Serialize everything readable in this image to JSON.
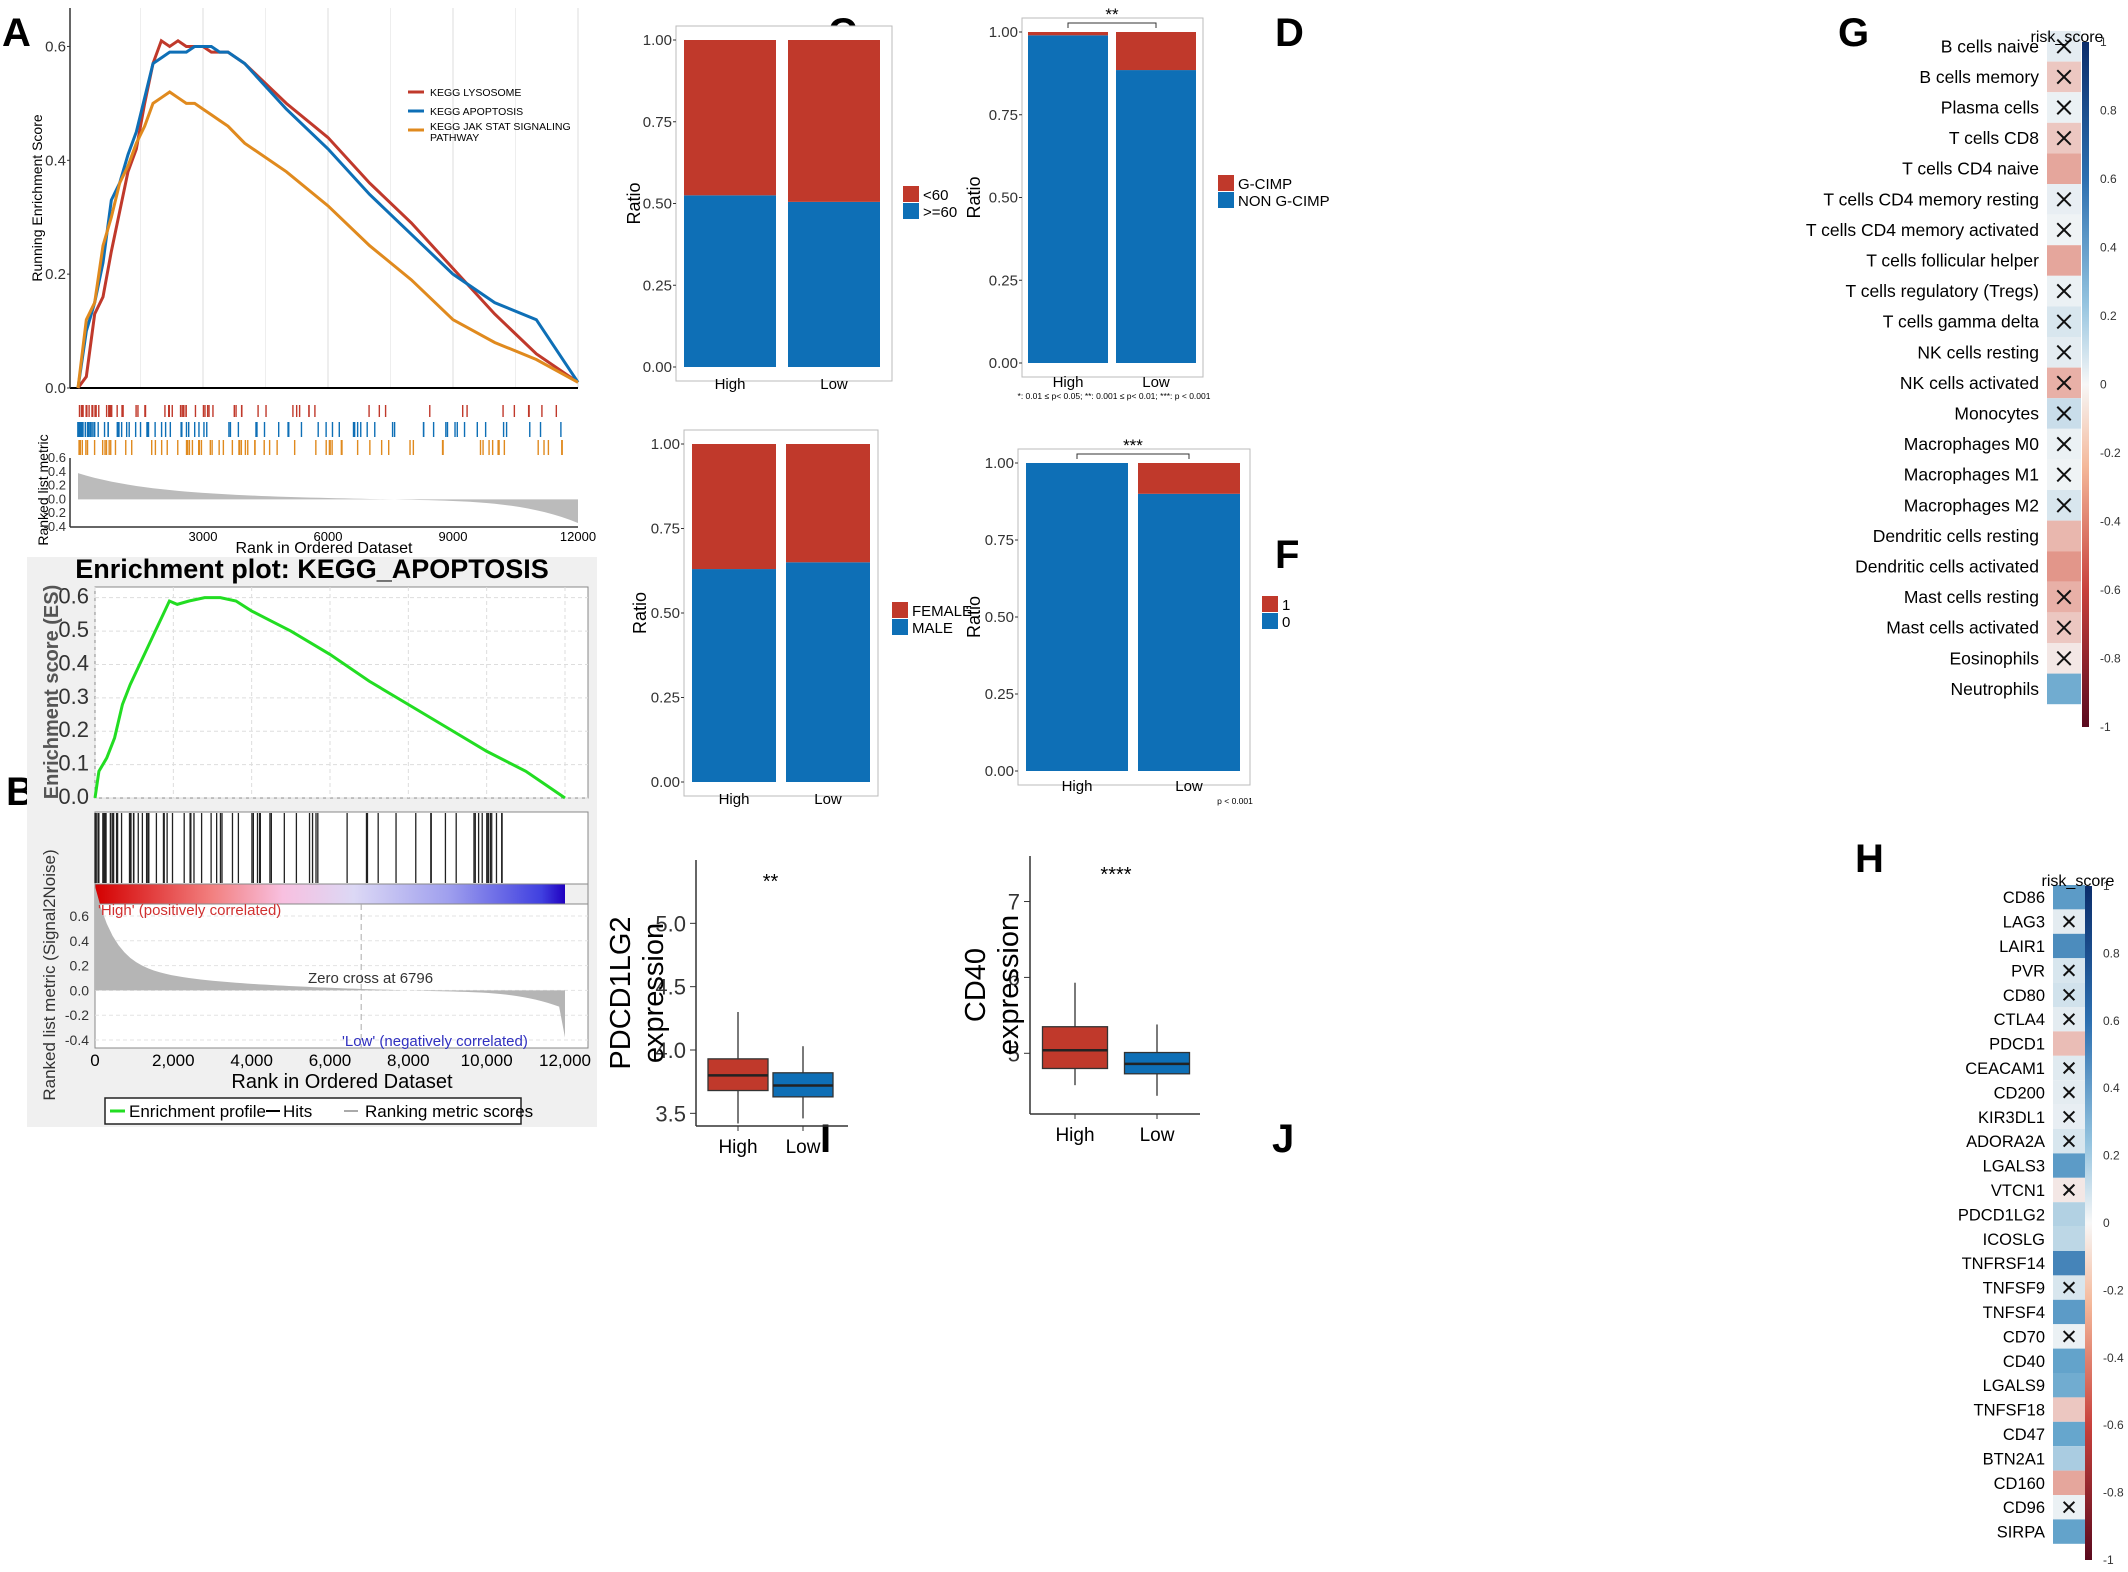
{
  "colors": {
    "red": "#c0392b",
    "blue": "#0e6fb6",
    "orange": "#e08a1e",
    "green": "#22dd22",
    "grey": "#aaaaaa"
  },
  "panels": {
    "A": "A",
    "B": "B",
    "C": "C",
    "D": "D",
    "E": "E",
    "F": "F",
    "G": "G",
    "H": "H",
    "I": "I",
    "J": "J"
  },
  "chart_data": [
    {
      "panel": "A",
      "type": "line",
      "ylabel": "Running Enrichment Score",
      "xlabel": "Rank in Ordered Dataset",
      "lower_ylabel": "Ranked list metric",
      "xlim": [
        0,
        12000
      ],
      "ylim": [
        0,
        0.65
      ],
      "xticks": [
        "3000",
        "6000",
        "9000",
        "12000"
      ],
      "yticks": [
        "0.0",
        "0.2",
        "0.4",
        "0.6"
      ],
      "lower_yticks": [
        "0.6",
        "0.4",
        "0.2",
        "0.0",
        "-0.2",
        "-0.4"
      ],
      "series": [
        {
          "name": "KEGG LYSOSOME",
          "color": "red",
          "x": [
            0,
            200,
            400,
            600,
            800,
            1000,
            1200,
            1400,
            1600,
            1800,
            2000,
            2200,
            2400,
            2600,
            2800,
            3000,
            3200,
            3400,
            3600,
            4000,
            5000,
            6000,
            7000,
            8000,
            9000,
            10000,
            11000,
            12000
          ],
          "y": [
            0,
            0.02,
            0.13,
            0.16,
            0.24,
            0.31,
            0.38,
            0.42,
            0.5,
            0.57,
            0.61,
            0.6,
            0.61,
            0.6,
            0.6,
            0.6,
            0.59,
            0.59,
            0.59,
            0.57,
            0.5,
            0.44,
            0.36,
            0.29,
            0.21,
            0.13,
            0.06,
            0.01
          ]
        },
        {
          "name": "KEGG APOPTOSIS",
          "color": "blue",
          "x": [
            0,
            200,
            400,
            600,
            800,
            1000,
            1200,
            1400,
            1600,
            1800,
            2000,
            2200,
            2400,
            2600,
            2800,
            3000,
            3200,
            3400,
            3600,
            4000,
            5000,
            6000,
            7000,
            8000,
            9000,
            10000,
            11000,
            12000
          ],
          "y": [
            0,
            0.1,
            0.15,
            0.22,
            0.33,
            0.36,
            0.41,
            0.45,
            0.51,
            0.57,
            0.58,
            0.59,
            0.59,
            0.59,
            0.6,
            0.6,
            0.6,
            0.59,
            0.59,
            0.57,
            0.49,
            0.42,
            0.34,
            0.27,
            0.2,
            0.15,
            0.12,
            0.01
          ]
        },
        {
          "name": "KEGG JAK STAT SIGNALING PATHWAY",
          "color": "orange",
          "x": [
            0,
            200,
            400,
            600,
            800,
            1000,
            1200,
            1400,
            1600,
            1800,
            2000,
            2200,
            2400,
            2600,
            2800,
            3000,
            3200,
            3400,
            3600,
            4000,
            5000,
            6000,
            7000,
            8000,
            9000,
            10000,
            11000,
            12000
          ],
          "y": [
            0,
            0.12,
            0.15,
            0.25,
            0.3,
            0.36,
            0.39,
            0.43,
            0.46,
            0.5,
            0.51,
            0.52,
            0.51,
            0.5,
            0.5,
            0.49,
            0.48,
            0.47,
            0.46,
            0.43,
            0.38,
            0.32,
            0.25,
            0.19,
            0.12,
            0.08,
            0.05,
            0.01
          ]
        }
      ]
    },
    {
      "panel": "B",
      "type": "line",
      "title": "Enrichment plot: KEGG_APOPTOSIS",
      "ylabel": "Enrichment score (ES)",
      "lower_ylabel": "Ranked list metric (Signal2Noise)",
      "xlabel": "Rank in Ordered Dataset",
      "xlim": [
        0,
        12000
      ],
      "ylim": [
        0,
        0.62
      ],
      "xticks": [
        "0",
        "2,000",
        "4,000",
        "6,000",
        "8,000",
        "10,000",
        "12,000"
      ],
      "yticks": [
        "0.0",
        "0.1",
        "0.2",
        "0.3",
        "0.4",
        "0.5",
        "0.6"
      ],
      "lower_yticks": [
        "0.6",
        "0.4",
        "0.2",
        "0.0",
        "-0.2",
        "-0.4"
      ],
      "series": [
        {
          "name": "Enrichment profile",
          "x": [
            0,
            100,
            300,
            500,
            700,
            900,
            1100,
            1300,
            1500,
            1700,
            1900,
            2100,
            2400,
            2800,
            3200,
            3600,
            4000,
            4500,
            5000,
            6000,
            7000,
            8000,
            9000,
            10000,
            11000,
            11500,
            12000
          ],
          "y": [
            0,
            0.08,
            0.12,
            0.18,
            0.28,
            0.34,
            0.39,
            0.44,
            0.49,
            0.54,
            0.59,
            0.58,
            0.59,
            0.6,
            0.6,
            0.59,
            0.56,
            0.53,
            0.5,
            0.43,
            0.35,
            0.28,
            0.21,
            0.14,
            0.08,
            0.04,
            0.0
          ]
        }
      ],
      "annotations": [
        "'High' (positively correlated)",
        "Zero cross at 6796",
        "'Low' (negatively correlated)"
      ],
      "legend": [
        "Enrichment profile",
        "Hits",
        "Ranking metric scores"
      ]
    },
    {
      "panel": "C",
      "type": "bar",
      "categories": [
        "High",
        "Low"
      ],
      "ylabel": "Ratio",
      "ylim": [
        0,
        1
      ],
      "yticks": [
        "0.00",
        "0.25",
        "0.50",
        "0.75",
        "1.00"
      ],
      "series": [
        {
          "name": ">=60",
          "values": [
            0.525,
            0.505
          ]
        },
        {
          "name": "<60",
          "values": [
            0.475,
            0.495
          ]
        }
      ],
      "legend": [
        "<60",
        ">=60"
      ]
    },
    {
      "panel": "D",
      "type": "bar",
      "categories": [
        "High",
        "Low"
      ],
      "ylabel": "Ratio",
      "ylim": [
        0,
        1
      ],
      "yticks": [
        "0.00",
        "0.25",
        "0.50",
        "0.75",
        "1.00"
      ],
      "series": [
        {
          "name": "NON G-CIMP",
          "values": [
            0.99,
            0.885
          ]
        },
        {
          "name": "G-CIMP",
          "values": [
            0.01,
            0.115
          ]
        }
      ],
      "legend": [
        "G-CIMP",
        "NON G-CIMP"
      ],
      "significance": "**",
      "footnote": "*: 0.01 ≤ p< 0.05; **: 0.001 ≤ p< 0.01; ***: p < 0.001"
    },
    {
      "panel": "E",
      "type": "bar",
      "categories": [
        "High",
        "Low"
      ],
      "ylabel": "Ratio",
      "ylim": [
        0,
        1
      ],
      "yticks": [
        "0.00",
        "0.25",
        "0.50",
        "0.75",
        "1.00"
      ],
      "series": [
        {
          "name": "MALE",
          "values": [
            0.63,
            0.65
          ]
        },
        {
          "name": "FEMALE",
          "values": [
            0.37,
            0.35
          ]
        }
      ],
      "legend": [
        "FEMALE",
        "MALE"
      ]
    },
    {
      "panel": "F",
      "type": "bar",
      "categories": [
        "High",
        "Low"
      ],
      "ylabel": "Ratio",
      "ylim": [
        0,
        1
      ],
      "yticks": [
        "0.00",
        "0.25",
        "0.50",
        "0.75",
        "1.00"
      ],
      "series": [
        {
          "name": "0",
          "values": [
            1.0,
            0.9
          ]
        },
        {
          "name": "1",
          "values": [
            0.0,
            0.1
          ]
        }
      ],
      "legend": [
        "1",
        "0"
      ],
      "significance": "***",
      "footnote": "p < 0.001"
    },
    {
      "panel": "G",
      "type": "heatmap",
      "colorbar_title": "risk_score",
      "colorbar_ticks": [
        "1",
        "0.8",
        "0.6",
        "0.4",
        "0.2",
        "0",
        "-0.2",
        "-0.4",
        "-0.6",
        "-0.8",
        "-1"
      ],
      "rows": [
        "B cells naive",
        "B cells memory",
        "Plasma cells",
        "T cells CD8",
        "T cells CD4 naive",
        "T cells CD4 memory resting",
        "T cells CD4 memory activated",
        "T cells follicular helper",
        "T cells regulatory (Tregs)",
        "T cells gamma delta",
        "NK cells resting",
        "NK cells activated",
        "Monocytes",
        "Macrophages M0",
        "Macrophages M1",
        "Macrophages M2",
        "Dendritic cells resting",
        "Dendritic cells activated",
        "Mast cells resting",
        "Mast cells activated",
        "Eosinophils",
        "Neutrophils"
      ],
      "values": [
        0.05,
        -0.15,
        0.03,
        -0.15,
        -0.25,
        0.04,
        0.02,
        -0.25,
        0.03,
        0.08,
        0.05,
        -0.22,
        0.12,
        0.03,
        0.02,
        0.08,
        -0.2,
        -0.3,
        -0.22,
        -0.15,
        -0.05,
        0.35
      ],
      "crossed": [
        true,
        true,
        true,
        true,
        false,
        true,
        true,
        false,
        true,
        true,
        true,
        true,
        true,
        true,
        true,
        true,
        false,
        false,
        true,
        true,
        true,
        false
      ]
    },
    {
      "panel": "H",
      "type": "heatmap",
      "colorbar_title": "risk_score",
      "colorbar_ticks": [
        "1",
        "0.8",
        "0.6",
        "0.4",
        "0.2",
        "0",
        "-0.2",
        "-0.4",
        "-0.6",
        "-0.8",
        "-1"
      ],
      "rows": [
        "CD86",
        "LAG3",
        "LAIR1",
        "PVR",
        "CD80",
        "CTLA4",
        "PDCD1",
        "CEACAM1",
        "CD200",
        "KIR3DL1",
        "ADORA2A",
        "LGALS3",
        "VTCN1",
        "PDCD1LG2",
        "ICOSLG",
        "TNFRSF14",
        "TNFSF9",
        "TNFSF4",
        "CD70",
        "CD40",
        "LGALS9",
        "TNFSF18",
        "CD47",
        "BTN2A1",
        "CD160",
        "CD96",
        "SIRPA"
      ],
      "values": [
        0.45,
        0.05,
        0.55,
        0.08,
        0.1,
        0.05,
        -0.18,
        0.06,
        0.05,
        0.04,
        0.08,
        0.45,
        -0.05,
        0.18,
        0.15,
        0.6,
        0.08,
        0.45,
        0.03,
        0.4,
        0.35,
        -0.15,
        0.38,
        0.2,
        -0.25,
        0.03,
        0.4
      ],
      "crossed": [
        false,
        true,
        false,
        true,
        true,
        true,
        false,
        true,
        true,
        true,
        true,
        false,
        true,
        false,
        false,
        false,
        true,
        false,
        true,
        false,
        false,
        false,
        false,
        false,
        false,
        true,
        false
      ]
    },
    {
      "panel": "I",
      "type": "box",
      "categories": [
        "High",
        "Low"
      ],
      "ylabel": "PDCD1LG2\nexpression",
      "yticks": [
        "3.5",
        "4.0",
        "4.5",
        "5.0"
      ],
      "ylim": [
        3.4,
        5.5
      ],
      "significance": "**",
      "boxes": [
        {
          "name": "High",
          "whisker_low": 3.42,
          "q1": 3.68,
          "median": 3.8,
          "q3": 3.93,
          "whisker_high": 4.3
        },
        {
          "name": "Low",
          "whisker_low": 3.46,
          "q1": 3.63,
          "median": 3.72,
          "q3": 3.82,
          "whisker_high": 4.03
        }
      ]
    },
    {
      "panel": "J",
      "type": "box",
      "categories": [
        "High",
        "Low"
      ],
      "ylabel": "CD40\nexpression",
      "yticks": [
        "5",
        "6",
        "7"
      ],
      "ylim": [
        4.2,
        7.6
      ],
      "significance": "****",
      "boxes": [
        {
          "name": "High",
          "whisker_low": 4.58,
          "q1": 4.8,
          "median": 5.04,
          "q3": 5.35,
          "whisker_high": 5.93
        },
        {
          "name": "Low",
          "whisker_low": 4.44,
          "q1": 4.73,
          "median": 4.86,
          "q3": 5.01,
          "whisker_high": 5.38
        }
      ]
    }
  ]
}
